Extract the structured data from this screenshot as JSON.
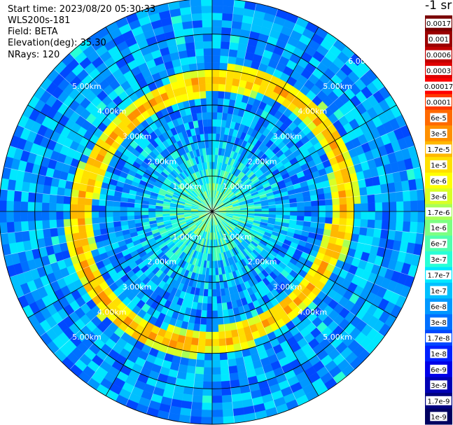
{
  "header": {
    "start_time": "Start time: 2023/08/20 05:30:33",
    "instrument": "WLS200s-181",
    "field": "Field: BETA",
    "elevation": "Elevation(deg): 35.30",
    "nrays": "NRays: 120"
  },
  "colorbar": {
    "unit": "-1 sr",
    "ticks": [
      "0.0017",
      "0.001",
      "0.0006",
      "0.0003",
      "0.00017",
      "0.0001",
      "6e-5",
      "3e-5",
      "1.7e-5",
      "1e-5",
      "6e-6",
      "3e-6",
      "1.7e-6",
      "1e-6",
      "6e-7",
      "3e-7",
      "1.7e-7",
      "1e-7",
      "6e-8",
      "3e-8",
      "1.7e-8",
      "1e-8",
      "6e-9",
      "3e-9",
      "1.7e-9",
      "1e-9"
    ],
    "colors": [
      "#7a0000",
      "#9a0000",
      "#c00000",
      "#e00000",
      "#ff0000",
      "#ff3a00",
      "#ff6a00",
      "#ff9000",
      "#ffb800",
      "#ffe000",
      "#ffff00",
      "#d8ff26",
      "#a8ff56",
      "#7cff82",
      "#50ffae",
      "#28ffd6",
      "#00e8ff",
      "#00c0ff",
      "#0098ff",
      "#0070ff",
      "#0048ff",
      "#0020ff",
      "#0000e8",
      "#0000b4",
      "#000080",
      "#000060"
    ]
  },
  "chart_data": {
    "type": "heatmap",
    "projection": "polar PPI",
    "rays": 120,
    "range_ring_labels": [
      "1.00km",
      "2.00km",
      "3.00km",
      "4.00km",
      "5.00km",
      "6.00km"
    ],
    "range_rings_km": [
      1,
      2,
      3,
      4,
      5,
      6
    ],
    "max_range_km": 6,
    "features": [
      {
        "description": "high backscatter ring",
        "range_km": 3.7,
        "value_range": [
          "3e-6",
          "1.7e-5"
        ]
      }
    ],
    "background_value": "6e-8"
  }
}
